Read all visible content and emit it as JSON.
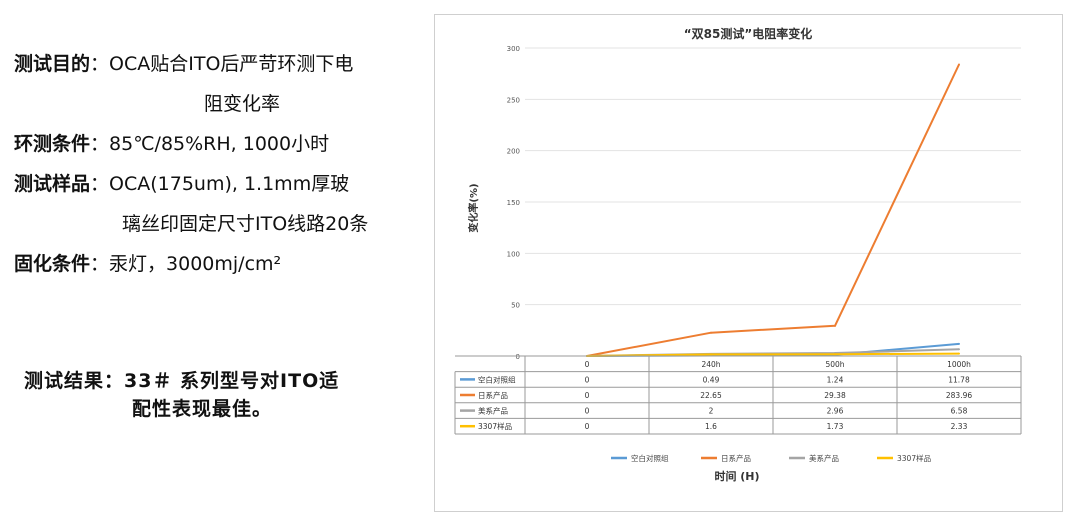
{
  "specs": [
    {
      "label": "测试目的",
      "sep": "：",
      "text": "OCA贴合ITO后严苛环测下电",
      "cont": "阻变化率"
    },
    {
      "label": "环测条件",
      "sep": "：",
      "text": "85℃/85%RH, 1000小时"
    },
    {
      "label": "测试样品",
      "sep": "：",
      "text": "OCA(175um), 1.1mm厚玻",
      "cont": "璃丝印固定尺寸ITO线路20条"
    },
    {
      "label": "固化条件",
      "sep": "：",
      "text": "汞灯，3000mj/cm²"
    }
  ],
  "result": {
    "line1": "测试结果：33＃ 系列型号对ITO适",
    "line2": "配性表现最佳。"
  },
  "chart_data": {
    "type": "line",
    "title": "“双85测试”电阻率变化",
    "ylabel": "变化率(%)",
    "xlabel": "时间 (H)",
    "categories": [
      "0",
      "240h",
      "500h",
      "1000h"
    ],
    "ylim": [
      0,
      300
    ],
    "yticks": [
      0,
      50,
      100,
      150,
      200,
      250,
      300
    ],
    "grid": true,
    "legend": "bottom",
    "series": [
      {
        "name": "空白对照组",
        "color": "#5b9bd5",
        "values": [
          0,
          0.49,
          1.24,
          11.78
        ]
      },
      {
        "name": "日系产品",
        "color": "#ed7d31",
        "values": [
          0,
          22.65,
          29.38,
          283.96
        ]
      },
      {
        "name": "美系产品",
        "color": "#a5a5a5",
        "values": [
          0,
          2,
          2.96,
          6.58
        ]
      },
      {
        "name": "3307样品",
        "color": "#ffc000",
        "values": [
          0,
          1.6,
          1.73,
          2.33
        ]
      }
    ]
  }
}
